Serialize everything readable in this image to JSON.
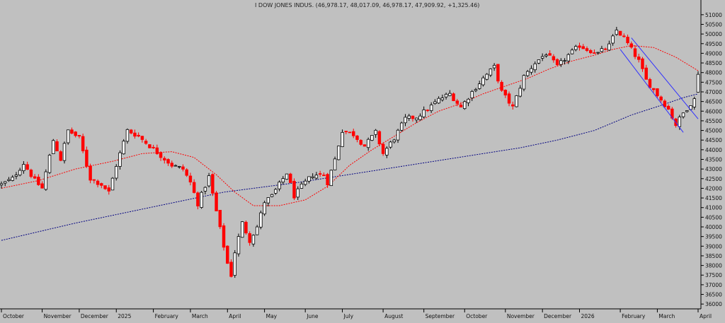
{
  "header": {
    "title": "I DOW JONES INDUS. (46,978.17, 48,017.09, 46,978.17, 47,909.92, +1,325.46)"
  },
  "colors": {
    "background": "#c0c0c0",
    "up_candle": "#000000",
    "down_candle": "#ff0000",
    "ma_short": "#ff0000",
    "ma_long": "#000080",
    "channel": "#3030ff",
    "grid": "#9a9a9a"
  },
  "chart_data": {
    "type": "candlestick",
    "title": "I DOW JONES INDUS. (46,978.17, 48,017.09, 46,978.17, 47,909.92, +1,325.46)",
    "last_bar": {
      "open": 46978.17,
      "high": 48017.09,
      "low": 46978.17,
      "close": 47909.92,
      "change": 1325.46
    },
    "y_axis": {
      "position": "right",
      "range": [
        35750,
        51250
      ],
      "ticks": [
        36000,
        36500,
        37000,
        37500,
        38000,
        38500,
        39000,
        39500,
        40000,
        40500,
        41000,
        41500,
        42000,
        42500,
        43000,
        43500,
        44000,
        44500,
        45000,
        45500,
        46000,
        46500,
        47000,
        47500,
        48000,
        48500,
        49000,
        49500,
        50000,
        50500,
        51000
      ]
    },
    "x_axis": {
      "labels": [
        "October",
        "November",
        "December",
        "2025",
        "February",
        "March",
        "April",
        "May",
        "June",
        "July",
        "August",
        "September",
        "October",
        "November",
        "December",
        "2026",
        "February",
        "March",
        "April"
      ],
      "label_positions": [
        0,
        11,
        21,
        31,
        41,
        51,
        61,
        71,
        82,
        92,
        103,
        114,
        125,
        136,
        146,
        156,
        167,
        177,
        188
      ]
    },
    "grid": false,
    "series": [
      {
        "type": "ohlc_close_anchors",
        "points": [
          [
            0,
            42200
          ],
          [
            3,
            42500
          ],
          [
            6,
            43300
          ],
          [
            9,
            42400
          ],
          [
            11,
            42000
          ],
          [
            14,
            44500
          ],
          [
            16,
            43500
          ],
          [
            18,
            45000
          ],
          [
            21,
            44600
          ],
          [
            24,
            42500
          ],
          [
            27,
            42200
          ],
          [
            29,
            41800
          ],
          [
            31,
            43200
          ],
          [
            34,
            45000
          ],
          [
            37,
            44700
          ],
          [
            40,
            44200
          ],
          [
            43,
            43700
          ],
          [
            46,
            43200
          ],
          [
            49,
            43000
          ],
          [
            51,
            42300
          ],
          [
            53,
            41200
          ],
          [
            56,
            42600
          ],
          [
            58,
            40800
          ],
          [
            60,
            39000
          ],
          [
            61,
            38100
          ],
          [
            62,
            37500
          ],
          [
            63,
            38700
          ],
          [
            65,
            40200
          ],
          [
            67,
            39300
          ],
          [
            69,
            40000
          ],
          [
            71,
            41300
          ],
          [
            73,
            41600
          ],
          [
            75,
            42200
          ],
          [
            77,
            42800
          ],
          [
            79,
            41600
          ],
          [
            81,
            42100
          ],
          [
            84,
            42700
          ],
          [
            87,
            42700
          ],
          [
            88,
            42300
          ],
          [
            90,
            43500
          ],
          [
            92,
            45000
          ],
          [
            95,
            44800
          ],
          [
            98,
            44200
          ],
          [
            101,
            44900
          ],
          [
            103,
            43800
          ],
          [
            106,
            44600
          ],
          [
            109,
            45600
          ],
          [
            112,
            45700
          ],
          [
            115,
            46100
          ],
          [
            118,
            46600
          ],
          [
            121,
            46900
          ],
          [
            124,
            46200
          ],
          [
            127,
            47000
          ],
          [
            130,
            47700
          ],
          [
            133,
            48300
          ],
          [
            135,
            47000
          ],
          [
            138,
            46200
          ],
          [
            141,
            47800
          ],
          [
            144,
            48500
          ],
          [
            147,
            49000
          ],
          [
            150,
            48300
          ],
          [
            153,
            48900
          ],
          [
            156,
            49400
          ],
          [
            158,
            49200
          ],
          [
            161,
            49000
          ],
          [
            164,
            49400
          ],
          [
            166,
            50200
          ],
          [
            168,
            49800
          ],
          [
            170,
            49200
          ],
          [
            172,
            48600
          ],
          [
            174,
            47600
          ],
          [
            176,
            47100
          ],
          [
            178,
            46600
          ],
          [
            180,
            46100
          ],
          [
            182,
            45300
          ],
          [
            184,
            45900
          ],
          [
            186,
            46400
          ],
          [
            187,
            46600
          ],
          [
            188,
            47910
          ]
        ]
      },
      {
        "name": "",
        "type": "line",
        "role": "ma_short",
        "points": [
          [
            0,
            42000
          ],
          [
            10,
            42400
          ],
          [
            20,
            43000
          ],
          [
            30,
            43400
          ],
          [
            38,
            43800
          ],
          [
            46,
            43900
          ],
          [
            52,
            43600
          ],
          [
            58,
            42700
          ],
          [
            63,
            41800
          ],
          [
            68,
            41100
          ],
          [
            75,
            41100
          ],
          [
            82,
            41400
          ],
          [
            88,
            42100
          ],
          [
            94,
            43200
          ],
          [
            100,
            44000
          ],
          [
            106,
            44700
          ],
          [
            112,
            45400
          ],
          [
            118,
            46000
          ],
          [
            124,
            46400
          ],
          [
            130,
            46900
          ],
          [
            136,
            47300
          ],
          [
            142,
            47700
          ],
          [
            148,
            48200
          ],
          [
            154,
            48600
          ],
          [
            160,
            48900
          ],
          [
            165,
            49200
          ],
          [
            170,
            49400
          ],
          [
            176,
            49300
          ],
          [
            182,
            48800
          ],
          [
            188,
            48100
          ]
        ]
      },
      {
        "name": "",
        "type": "line",
        "role": "ma_long",
        "points": [
          [
            0,
            39300
          ],
          [
            20,
            40200
          ],
          [
            40,
            41000
          ],
          [
            60,
            41800
          ],
          [
            80,
            42300
          ],
          [
            100,
            42900
          ],
          [
            120,
            43500
          ],
          [
            140,
            44100
          ],
          [
            150,
            44500
          ],
          [
            160,
            45000
          ],
          [
            170,
            45800
          ],
          [
            178,
            46300
          ],
          [
            184,
            46700
          ],
          [
            188,
            46900
          ]
        ]
      },
      {
        "name": "",
        "type": "line",
        "role": "channel_upper",
        "points": [
          [
            170,
            49800
          ],
          [
            188,
            45600
          ]
        ]
      },
      {
        "name": "",
        "type": "line",
        "role": "channel_lower",
        "points": [
          [
            167,
            49200
          ],
          [
            184,
            44900
          ]
        ]
      }
    ]
  }
}
